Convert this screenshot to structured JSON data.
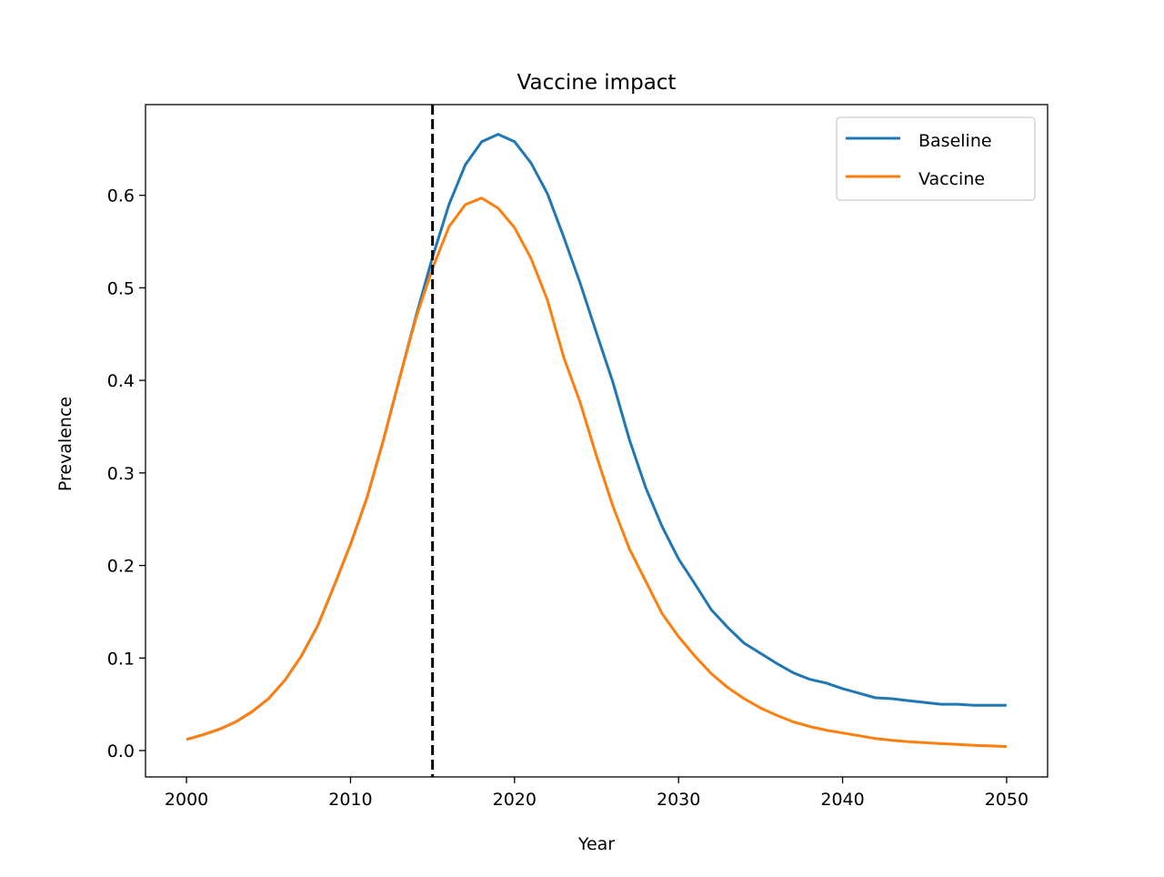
{
  "chart_data": {
    "type": "line",
    "title": "Vaccine impact",
    "xlabel": "Year",
    "ylabel": "Prevalence",
    "xlim": [
      1997.5,
      2052.5
    ],
    "ylim": [
      -0.0285,
      0.698
    ],
    "xticks": [
      2000,
      2010,
      2020,
      2030,
      2040,
      2050
    ],
    "xtick_labels": [
      "2000",
      "2010",
      "2020",
      "2030",
      "2040",
      "2050"
    ],
    "yticks": [
      0.0,
      0.1,
      0.2,
      0.3,
      0.4,
      0.5,
      0.6
    ],
    "ytick_labels": [
      "0.0",
      "0.1",
      "0.2",
      "0.3",
      "0.4",
      "0.5",
      "0.6"
    ],
    "grid": false,
    "legend_position": "top-right",
    "vline": {
      "x": 2015,
      "style": "dashed",
      "color": "#000000"
    },
    "x": [
      2000,
      2001,
      2002,
      2003,
      2004,
      2005,
      2006,
      2007,
      2008,
      2009,
      2010,
      2011,
      2012,
      2013,
      2014,
      2015,
      2016,
      2017,
      2018,
      2019,
      2020,
      2021,
      2022,
      2023,
      2024,
      2025,
      2026,
      2027,
      2028,
      2029,
      2030,
      2031,
      2032,
      2033,
      2034,
      2035,
      2036,
      2037,
      2038,
      2039,
      2040,
      2041,
      2042,
      2043,
      2044,
      2045,
      2046,
      2047,
      2048,
      2049,
      2050
    ],
    "series": [
      {
        "name": "Baseline",
        "color": "#1f77b4",
        "values": [
          0.012,
          0.017,
          0.023,
          0.031,
          0.042,
          0.056,
          0.076,
          0.102,
          0.135,
          0.178,
          0.223,
          0.273,
          0.335,
          0.403,
          0.47,
          0.533,
          0.59,
          0.633,
          0.658,
          0.666,
          0.658,
          0.635,
          0.602,
          0.555,
          0.505,
          0.451,
          0.398,
          0.336,
          0.284,
          0.242,
          0.207,
          0.18,
          0.152,
          0.133,
          0.116,
          0.105,
          0.094,
          0.084,
          0.077,
          0.073,
          0.067,
          0.062,
          0.057,
          0.056,
          0.054,
          0.052,
          0.05,
          0.05,
          0.049,
          0.049,
          0.049
        ]
      },
      {
        "name": "Vaccine",
        "color": "#ff7f0e",
        "values": [
          0.012,
          0.017,
          0.023,
          0.031,
          0.042,
          0.056,
          0.076,
          0.102,
          0.135,
          0.178,
          0.223,
          0.273,
          0.335,
          0.403,
          0.468,
          0.521,
          0.566,
          0.59,
          0.597,
          0.586,
          0.565,
          0.532,
          0.487,
          0.425,
          0.376,
          0.318,
          0.264,
          0.218,
          0.183,
          0.148,
          0.123,
          0.102,
          0.083,
          0.068,
          0.056,
          0.046,
          0.038,
          0.031,
          0.026,
          0.022,
          0.019,
          0.016,
          0.013,
          0.011,
          0.0095,
          0.0085,
          0.0075,
          0.0066,
          0.0056,
          0.005,
          0.0043
        ]
      }
    ]
  }
}
